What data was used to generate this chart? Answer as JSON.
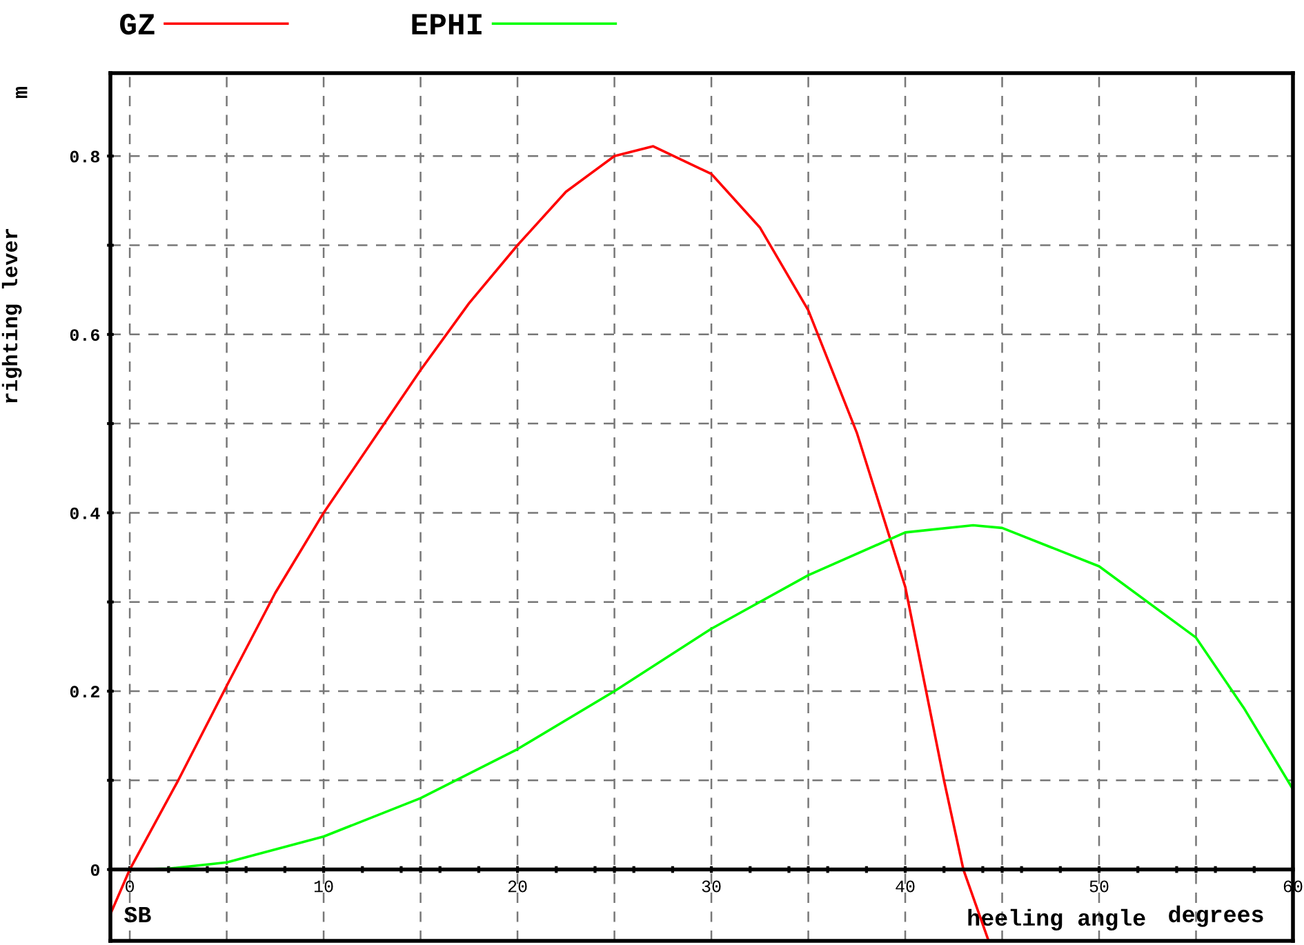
{
  "chart_data": {
    "type": "line",
    "xlabel": "heeling angle",
    "ylabel": "righting lever",
    "annotations": [
      "m",
      "SB",
      "degrees"
    ],
    "xlim": [
      -1,
      60
    ],
    "ylim": [
      -0.08,
      0.893
    ],
    "xticks": [
      0,
      {
        "value": 2,
        "label": null
      },
      {
        "value": 4,
        "label": null
      },
      {
        "value": 5,
        "label": null
      },
      {
        "value": 6,
        "label": null
      },
      {
        "value": 8,
        "label": null
      },
      10,
      {
        "value": 12,
        "label": null
      },
      {
        "value": 14,
        "label": null
      },
      {
        "value": 15,
        "label": null
      },
      {
        "value": 16,
        "label": null
      },
      {
        "value": 18,
        "label": null
      },
      20,
      {
        "value": 22,
        "label": null
      },
      {
        "value": 24,
        "label": null
      },
      {
        "value": 25,
        "label": null
      },
      {
        "value": 26,
        "label": null
      },
      {
        "value": 28,
        "label": null
      },
      30,
      {
        "value": 32,
        "label": null
      },
      {
        "value": 34,
        "label": null
      },
      {
        "value": 35,
        "label": null
      },
      {
        "value": 36,
        "label": null
      },
      {
        "value": 38,
        "label": null
      },
      40,
      {
        "value": 42,
        "label": null
      },
      {
        "value": 44,
        "label": null
      },
      {
        "value": 45,
        "label": null
      },
      {
        "value": 46,
        "label": null
      },
      {
        "value": 48,
        "label": null
      },
      50,
      {
        "value": 52,
        "label": null
      },
      {
        "value": 54,
        "label": null
      },
      {
        "value": 55,
        "label": null
      },
      {
        "value": 56,
        "label": null
      },
      {
        "value": 58,
        "label": null
      },
      60
    ],
    "yticks": [
      0,
      {
        "value": 0.1,
        "label": null
      },
      0.2,
      {
        "value": 0.3,
        "label": null
      },
      0.4,
      {
        "value": 0.5,
        "label": null
      },
      0.6,
      {
        "value": 0.7,
        "label": null
      },
      0.8
    ],
    "grid": true,
    "legend": "top",
    "marker": "none",
    "line_style": "solid",
    "series": [
      {
        "name": "GZ",
        "color": "#ff0000",
        "x": [
          -1,
          0,
          2.5,
          5,
          7.5,
          10,
          12.5,
          15,
          17.5,
          20,
          22.5,
          25,
          27,
          30,
          32.5,
          35,
          37.5,
          40,
          42,
          43,
          44.3
        ],
        "values": [
          -0.05,
          0,
          0.1,
          0.206,
          0.31,
          0.4,
          0.48,
          0.56,
          0.635,
          0.7,
          0.76,
          0.8,
          0.811,
          0.78,
          0.72,
          0.627,
          0.49,
          0.317,
          0.1,
          0,
          -0.08
        ]
      },
      {
        "name": "EPHI",
        "color": "#00ff00",
        "x": [
          0,
          2,
          5,
          10,
          15,
          20,
          25,
          30,
          35,
          40,
          43.5,
          45,
          50,
          55,
          57.5,
          60
        ],
        "values": [
          0,
          0.001,
          0.008,
          0.037,
          0.08,
          0.135,
          0.2,
          0.27,
          0.33,
          0.378,
          0.386,
          0.383,
          0.34,
          0.26,
          0.18,
          0.09
        ]
      }
    ]
  }
}
